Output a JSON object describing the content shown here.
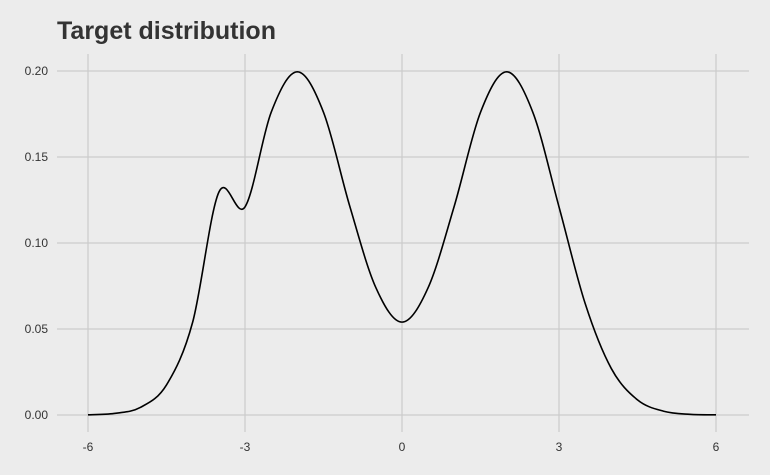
{
  "chart_data": {
    "type": "line",
    "title": "Target distribution",
    "xlabel": "",
    "ylabel": "",
    "xlim": [
      -6,
      6
    ],
    "ylim": [
      0,
      0.2
    ],
    "x_ticks": [
      -6,
      -3,
      0,
      3,
      6
    ],
    "x_tick_labels": [
      "-6",
      "-3",
      "0",
      "3",
      "6"
    ],
    "y_ticks": [
      0,
      0.05,
      0.1,
      0.15,
      0.2
    ],
    "y_tick_labels": [
      "0.00",
      "0.05",
      "0.10",
      "0.15",
      "0.20"
    ],
    "grid": true,
    "legend": "none",
    "series": [
      {
        "x": [
          -6,
          -5.5,
          -5,
          -4.5,
          -4,
          -3.5,
          -3,
          -2.5,
          -2,
          -1.5,
          -1,
          -0.5,
          0,
          0.5,
          1,
          1.5,
          2,
          2.5,
          3,
          3.5,
          4,
          4.5,
          5,
          5.5,
          6
        ],
        "y": [
          0.0001,
          0.0009,
          0.0044,
          0.0175,
          0.054,
          0.1295,
          0.121,
          0.176,
          0.1995,
          0.176,
          0.1216,
          0.0741,
          0.054,
          0.0741,
          0.1216,
          0.176,
          0.1995,
          0.176,
          0.121,
          0.0648,
          0.027,
          0.0088,
          0.0022,
          0.0004,
          0.0001
        ],
        "color": "#000000"
      }
    ],
    "colors": {
      "background": "#ececec",
      "grid": "#cbcbcb",
      "text": "#333333",
      "line": "#000000"
    }
  }
}
